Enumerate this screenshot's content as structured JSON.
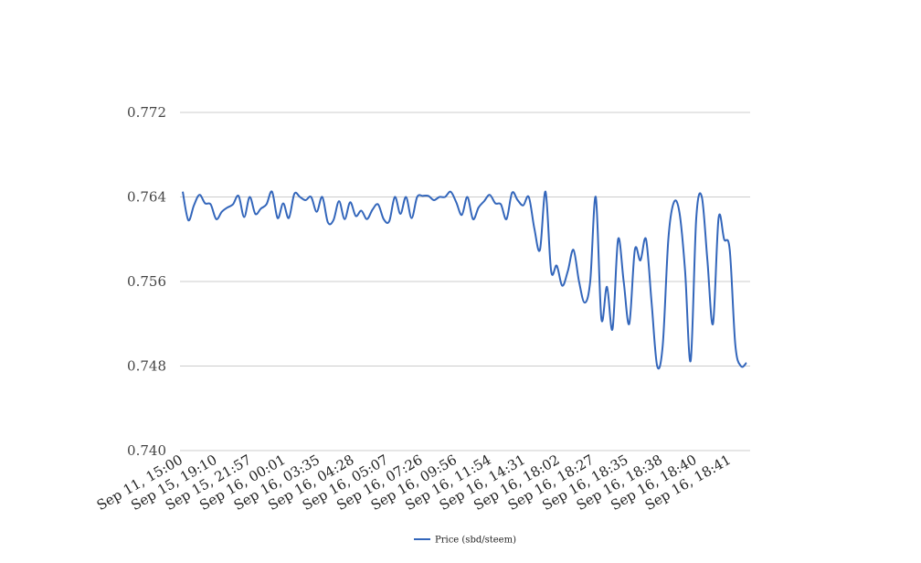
{
  "chart_data": {
    "type": "line",
    "title": "",
    "xlabel": "",
    "ylabel": "",
    "ylim": [
      0.74,
      0.772
    ],
    "yticks": [
      "0.740",
      "0.748",
      "0.756",
      "0.764",
      "0.772"
    ],
    "ytick_values": [
      0.74,
      0.748,
      0.756,
      0.764,
      0.772
    ],
    "xtick_labels": [
      "Sep 11, 15:00",
      "Sep 15, 19:10",
      "Sep 15, 21:57",
      "Sep 16, 00:01",
      "Sep 16, 03:35",
      "Sep 16, 04:28",
      "Sep 16, 05:07",
      "Sep 16, 07:26",
      "Sep 16, 09:56",
      "Sep 16, 11:54",
      "Sep 16, 14:31",
      "Sep 16, 18:02",
      "Sep 16, 18:27",
      "Sep 16, 18:35",
      "Sep 16, 18:38",
      "Sep 16, 18:40",
      "Sep 16, 18:41"
    ],
    "grid": true,
    "legend_position": "bottom-center",
    "series": [
      {
        "name": "Price (sbd/steem)",
        "color": "#3366bb",
        "values": [
          0.7645,
          0.7618,
          0.7632,
          0.7642,
          0.7634,
          0.7633,
          0.7619,
          0.7626,
          0.763,
          0.7633,
          0.7641,
          0.7621,
          0.764,
          0.7624,
          0.7629,
          0.7633,
          0.7645,
          0.762,
          0.7634,
          0.762,
          0.7643,
          0.764,
          0.7637,
          0.764,
          0.7626,
          0.764,
          0.7616,
          0.7618,
          0.7636,
          0.7619,
          0.7635,
          0.7622,
          0.7627,
          0.7619,
          0.7628,
          0.7633,
          0.7619,
          0.7617,
          0.764,
          0.7624,
          0.764,
          0.762,
          0.764,
          0.7641,
          0.7641,
          0.7637,
          0.764,
          0.764,
          0.7645,
          0.7635,
          0.7623,
          0.764,
          0.7619,
          0.763,
          0.7636,
          0.7642,
          0.7634,
          0.7633,
          0.7619,
          0.7644,
          0.7637,
          0.7632,
          0.764,
          0.761,
          0.759,
          0.7645,
          0.757,
          0.7575,
          0.7556,
          0.757,
          0.759,
          0.756,
          0.754,
          0.756,
          0.764,
          0.7525,
          0.7555,
          0.7515,
          0.76,
          0.756,
          0.752,
          0.759,
          0.758,
          0.76,
          0.754,
          0.748,
          0.75,
          0.76,
          0.7635,
          0.7625,
          0.757,
          0.7485,
          0.762,
          0.764,
          0.758,
          0.752,
          0.762,
          0.76,
          0.759,
          0.75,
          0.748,
          0.7483
        ]
      }
    ]
  }
}
